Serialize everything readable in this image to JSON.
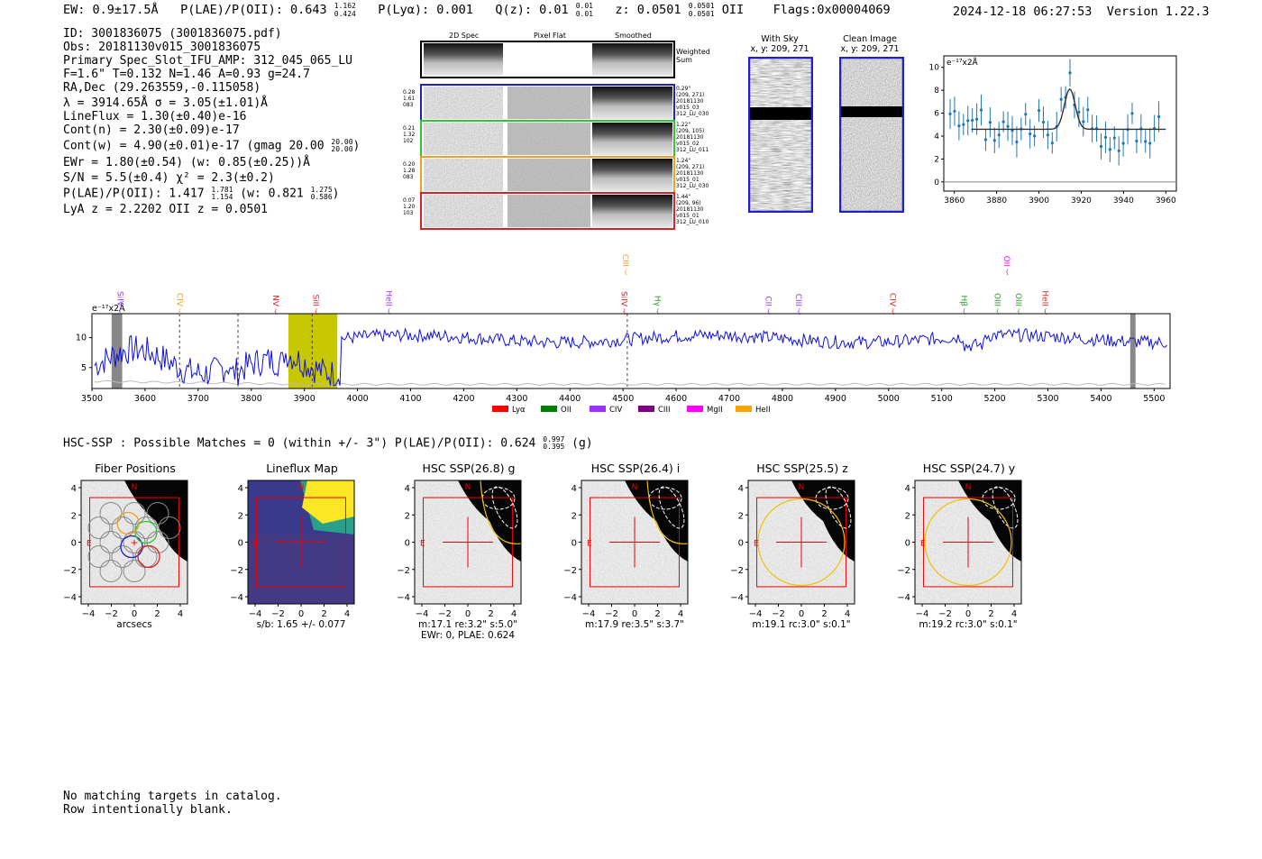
{
  "header": {
    "ew": "EW: 0.9±17.5Å",
    "plae": "P(LAE)/P(OII): 0.643",
    "plae_hi": "1.162",
    "plae_lo": "0.424",
    "plya": "P(Lyα): 0.001",
    "qz": "Q(z): 0.01",
    "qz_hi": "0.01",
    "qz_lo": "0.01",
    "z": "z: 0.0501",
    "z_hi": "0.0501",
    "z_lo": "0.0501",
    "z_line": "OII",
    "flags": "Flags:0x00004069",
    "timestamp": "2024-12-18 06:27:53",
    "version": "Version 1.22.3"
  },
  "info": {
    "id": "ID: 3001836075 (3001836075.pdf)",
    "obs": "Obs: 20181130v015_3001836075",
    "primary": "Primary Spec_Slot_IFU_AMP: 312_045_065_LU",
    "fwhm": "F=1.6\"  T=0.132  N=1.46  A=0.93  g=24.7",
    "radec": "RA,Dec (29.263559,-0.115058)",
    "lambda": "λ = 3914.65Å   σ = 3.05(±1.01)Å",
    "lineflux": "LineFlux = 1.30(±0.40)e-16",
    "contn": "Cont(n) = 2.30(±0.09)e-17",
    "contw": "Cont(w) = 4.90(±0.01)e-17 (gmag 20.00",
    "contw_hi": "20.00",
    "contw_lo": "20.00",
    "contw_end": ")",
    "ewr": "EWr = 1.80(±0.54)  (w: 0.85(±0.25))Å",
    "sn": "S/N = 5.5(±0.4)  χ² = 2.3(±0.2)",
    "plae": "P(LAE)/P(OII): 1.417",
    "plae_hi": "1.781",
    "plae_lo": "1.154",
    "plae_w": "(w: 0.821",
    "plae_w_hi": "1.275",
    "plae_w_lo": "0.586",
    "plae_end": ")",
    "lya": "LyA z = 2.2202  OII z = 0.0501"
  },
  "cutouts": {
    "col_labels": [
      "2D Spec",
      "Pixel Flat",
      "Smoothed"
    ],
    "weighted_label": "Weighted Sum",
    "rows": [
      {
        "left": [
          "0.28",
          "1.61",
          "083"
        ],
        "right": [
          "0.29\"",
          "(209, 271)",
          "20181130",
          "v015_03",
          "312_LU_030"
        ],
        "color": "#1f1fd0"
      },
      {
        "left": [
          "0.21",
          "1.32",
          "102"
        ],
        "right": [
          "1.22\"",
          "(209, 105)",
          "20181130",
          "v015_02",
          "312_LU_011"
        ],
        "color": "#2ec82e"
      },
      {
        "left": [
          "0.20",
          "1.28",
          "083"
        ],
        "right": [
          "1.24\"",
          "(209, 271)",
          "20181130",
          "v015_01",
          "312_LU_030"
        ],
        "color": "#f0a020"
      },
      {
        "left": [
          "0.07",
          "1.20",
          "103"
        ],
        "right": [
          "1.44\"",
          "(209, 96)",
          "20181130",
          "v015_01",
          "312_LU_010"
        ],
        "color": "#e02020"
      }
    ]
  },
  "sky": {
    "with_sky": "With Sky",
    "with_sky_xy": "x, y: 209, 271",
    "clean": "Clean Image",
    "clean_xy": "x, y: 209, 271"
  },
  "fit_plot": {
    "unit": "e⁻¹⁷x2Å",
    "xticks": [
      "3860",
      "3880",
      "3900",
      "3920",
      "3940",
      "3960"
    ],
    "yticks": [
      "0",
      "2",
      "4",
      "6",
      "8",
      "10"
    ]
  },
  "spectrum": {
    "unit": "e⁻¹⁷x2Å",
    "xticks": [
      "3500",
      "3600",
      "3700",
      "3800",
      "3900",
      "4000",
      "4100",
      "4200",
      "4300",
      "4400",
      "4500",
      "4600",
      "4700",
      "4800",
      "4900",
      "5000",
      "5100",
      "5200",
      "5300",
      "5400",
      "5500"
    ],
    "yticks": [
      "5",
      "10"
    ],
    "lines": [
      {
        "name": "SiIV",
        "color": "#9b30ff"
      },
      {
        "name": "CIV",
        "color": "#f0a020"
      },
      {
        "name": "NV",
        "color": "#e02020"
      },
      {
        "name": "SiII",
        "color": "#e02020"
      },
      {
        "name": "HeII",
        "color": "#9b30ff"
      },
      {
        "name": "SiIV",
        "color": "#e02020"
      },
      {
        "name": "CIII",
        "color": "#f0a020"
      },
      {
        "name": "Hγ",
        "color": "#2a9a2a"
      },
      {
        "name": "CII",
        "color": "#9b30ff"
      },
      {
        "name": "CIII",
        "color": "#9b30ff"
      },
      {
        "name": "CIV",
        "color": "#e02020"
      },
      {
        "name": "Hβ",
        "color": "#2a9a2a"
      },
      {
        "name": "OII",
        "color": "#ff00ff"
      },
      {
        "name": "OIII",
        "color": "#2a9a2a"
      },
      {
        "name": "OIII",
        "color": "#2a9a2a"
      },
      {
        "name": "HeII",
        "color": "#e02020"
      }
    ],
    "legend": [
      {
        "name": "Lyα",
        "color": "#ff0000"
      },
      {
        "name": "OII",
        "color": "#008000"
      },
      {
        "name": "CIV",
        "color": "#9b30ff"
      },
      {
        "name": "CIII",
        "color": "#800080"
      },
      {
        "name": "MgII",
        "color": "#ff00ff"
      },
      {
        "name": "HeII",
        "color": "#ffa500"
      }
    ]
  },
  "hsc": {
    "title": "HSC-SSP : Possible Matches = 0 (within +/- 3\")  P(LAE)/P(OII): 0.624",
    "hi": "0.997",
    "lo": "0.395",
    "band": "(g)",
    "panels": [
      {
        "title": "Fiber Positions",
        "cap1": "arcsecs",
        "cap2": ""
      },
      {
        "title": "Lineflux Map",
        "cap1": "s/b: 1.65 +/- 0.077",
        "cap2": ""
      },
      {
        "title": "HSC SSP(26.8) g",
        "cap1": "m:17.1  re:3.2\"  s:5.0\"",
        "cap2": "EWr: 0, PLAE: 0.624"
      },
      {
        "title": "HSC SSP(26.4) i",
        "cap1": "m:17.9  re:3.5\"  s:3.7\"",
        "cap2": ""
      },
      {
        "title": "HSC SSP(25.5) z",
        "cap1": "m:19.1 rc:3.0\"  s:0.1\"",
        "cap2": ""
      },
      {
        "title": "HSC SSP(24.7) y",
        "cap1": "m:19.2 rc:3.0\"  s:0.1\"",
        "cap2": ""
      }
    ],
    "xticks": [
      "−4",
      "−2",
      "0",
      "2",
      "4"
    ],
    "yticks": [
      "4",
      "2",
      "0",
      "−2",
      "−4"
    ],
    "north": "N",
    "east": "E"
  },
  "footer": {
    "line1": "No matching targets in catalog.",
    "line2": "Row intentionally blank."
  }
}
